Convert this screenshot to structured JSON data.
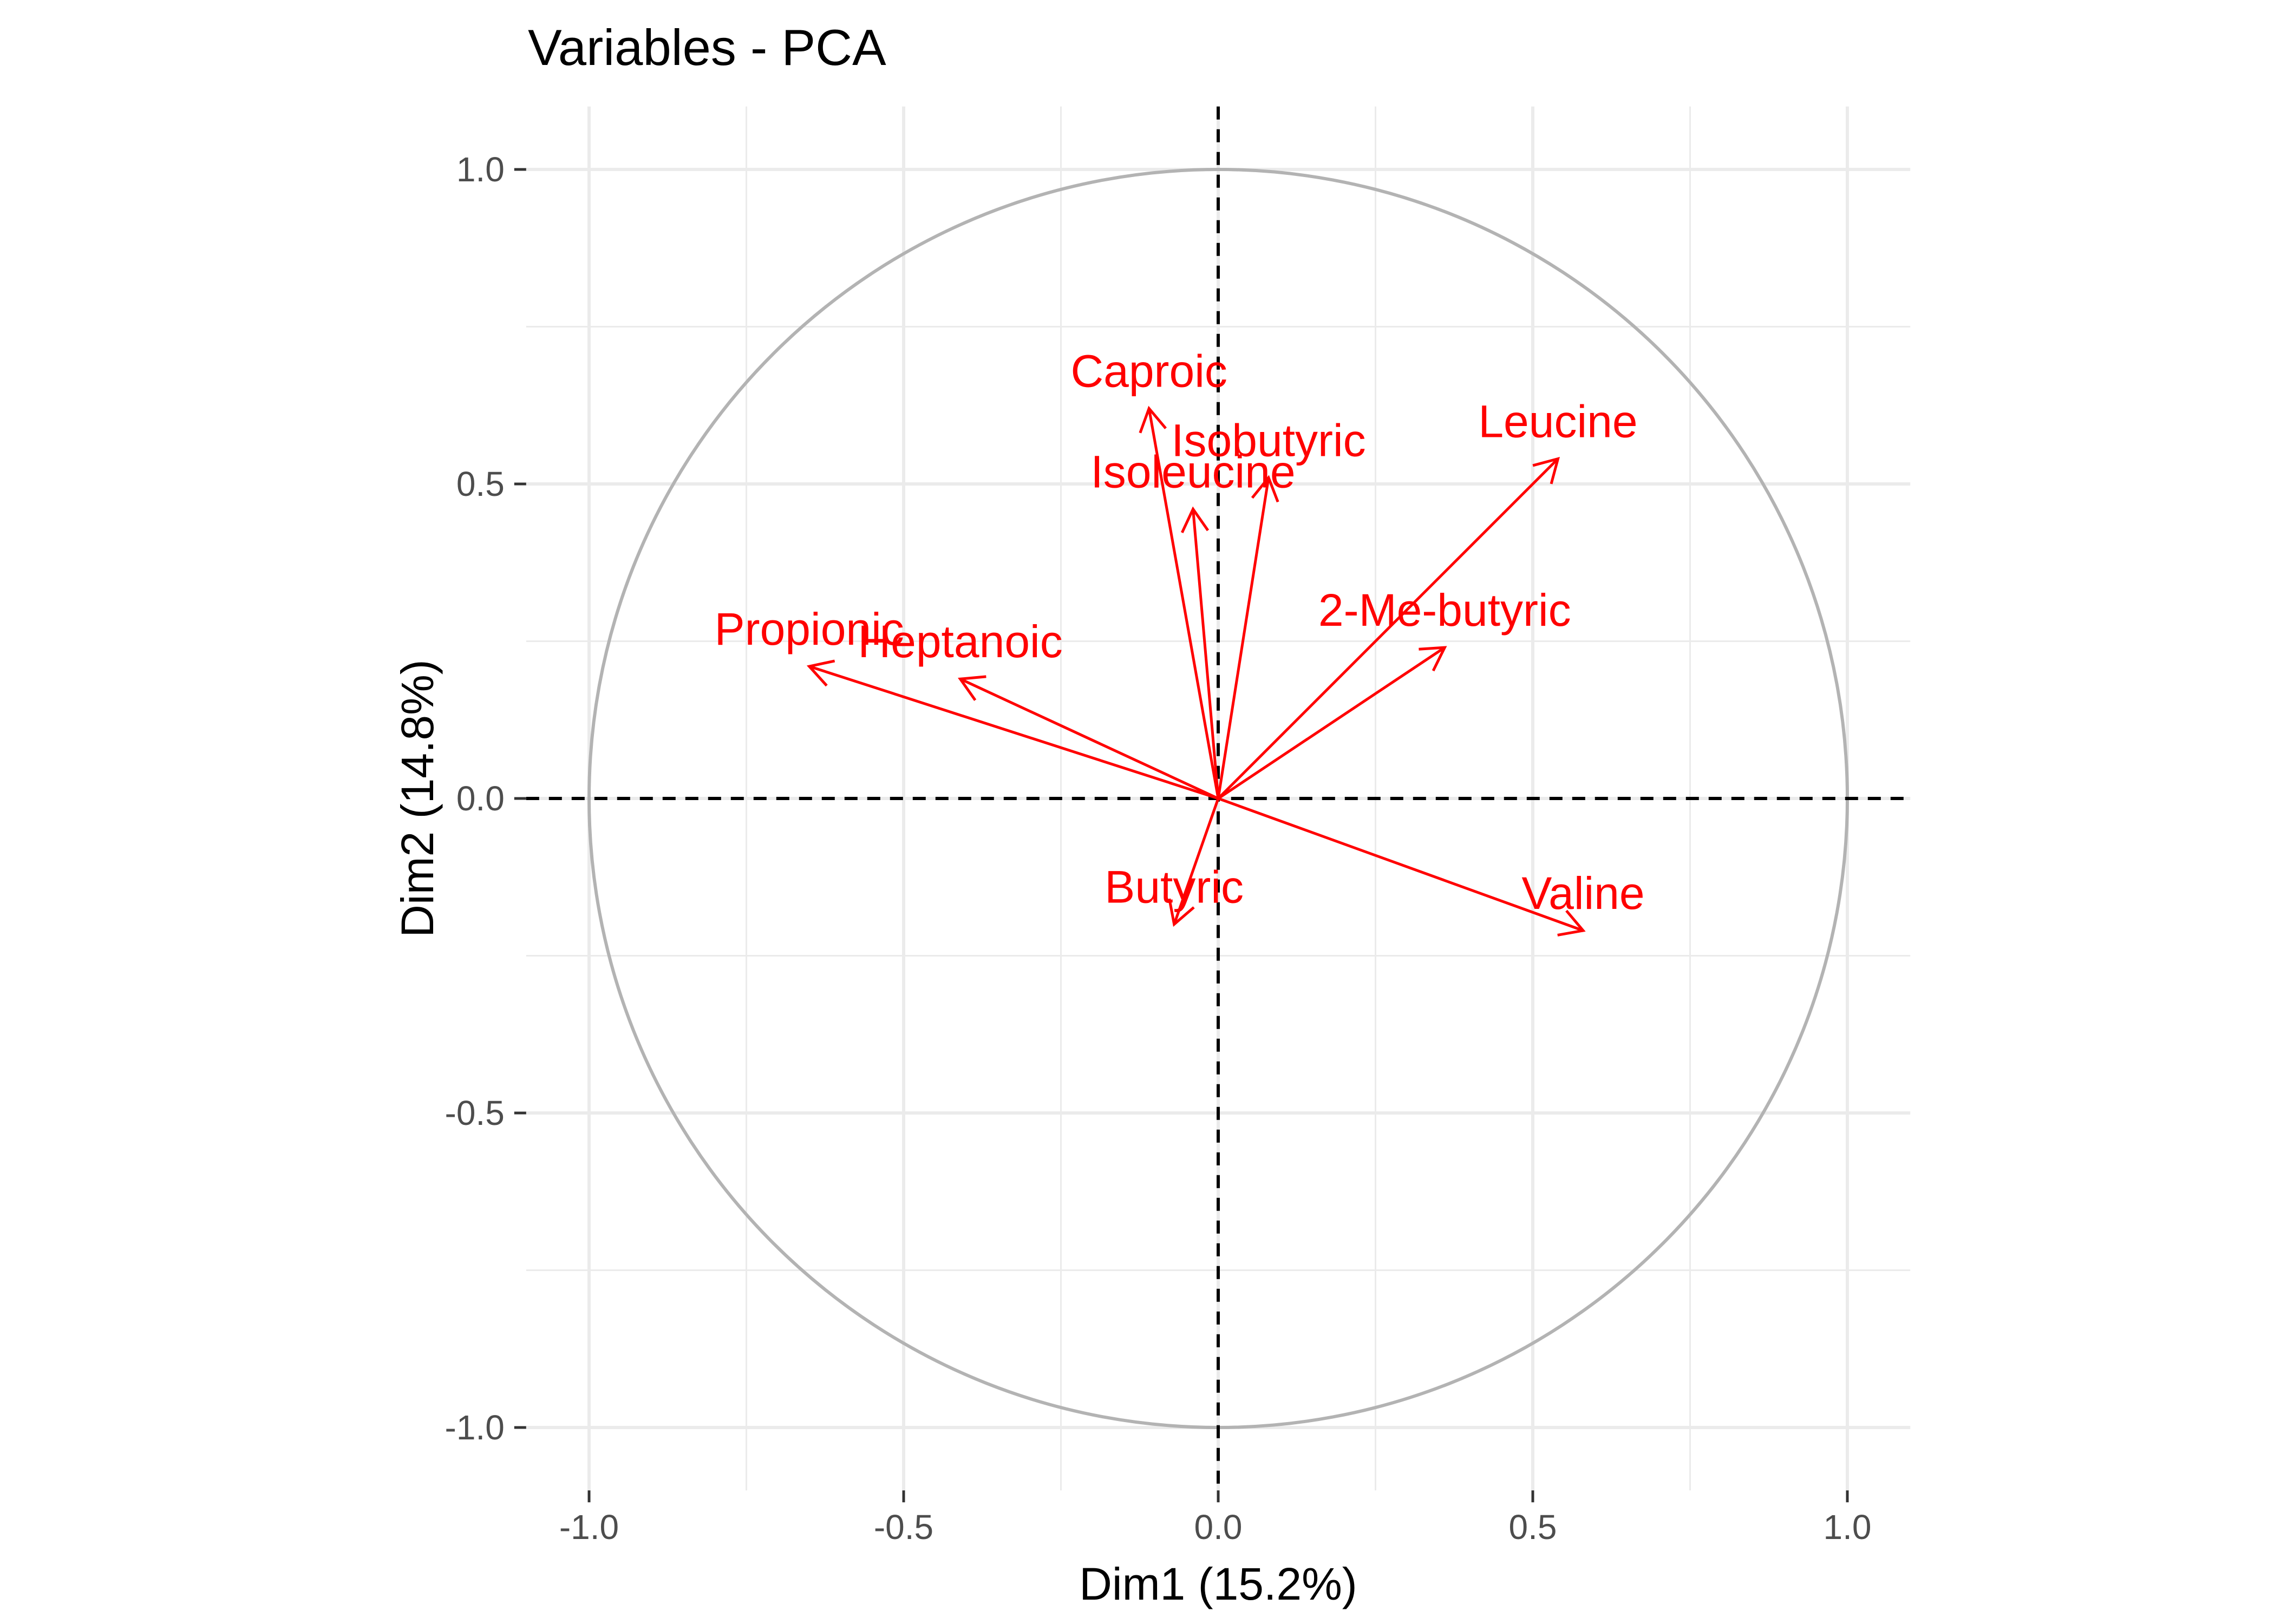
{
  "chart_data": {
    "type": "scatter",
    "subtype": "pca-correlation-circle",
    "title": "Variables - PCA",
    "xlabel": "Dim1 (15.2%)",
    "ylabel": "Dim2 (14.8%)",
    "xlim": [
      -1.1,
      1.1
    ],
    "ylim": [
      -1.1,
      1.1
    ],
    "xticks": [
      -1.0,
      -0.5,
      0.0,
      0.5,
      1.0
    ],
    "yticks": [
      -1.0,
      -0.5,
      0.0,
      0.5,
      1.0
    ],
    "xtick_labels": [
      "-1.0",
      "-0.5",
      "0.0",
      "0.5",
      "1.0"
    ],
    "ytick_labels": [
      "-1.0",
      "-0.5",
      "0.0",
      "0.5",
      "1.0"
    ],
    "grid": true,
    "unit_circle": true,
    "reference_lines": {
      "x": 0,
      "y": 0,
      "style": "dashed"
    },
    "arrow_color": "#ff0000",
    "circle_color": "#b3b3b3",
    "grid_color": "#ebebeb",
    "variables": [
      {
        "name": "Caproic",
        "x": -0.11,
        "y": 0.62
      },
      {
        "name": "Isobutyric",
        "x": 0.08,
        "y": 0.51
      },
      {
        "name": "Isoleucine",
        "x": -0.04,
        "y": 0.46
      },
      {
        "name": "Leucine",
        "x": 0.54,
        "y": 0.54
      },
      {
        "name": "Propionic",
        "x": -0.65,
        "y": 0.21
      },
      {
        "name": "Heptanoic",
        "x": -0.41,
        "y": 0.19
      },
      {
        "name": "2-Me-butyric",
        "x": 0.36,
        "y": 0.24
      },
      {
        "name": "Butyric",
        "x": -0.07,
        "y": -0.2
      },
      {
        "name": "Valine",
        "x": 0.58,
        "y": -0.21
      }
    ]
  }
}
